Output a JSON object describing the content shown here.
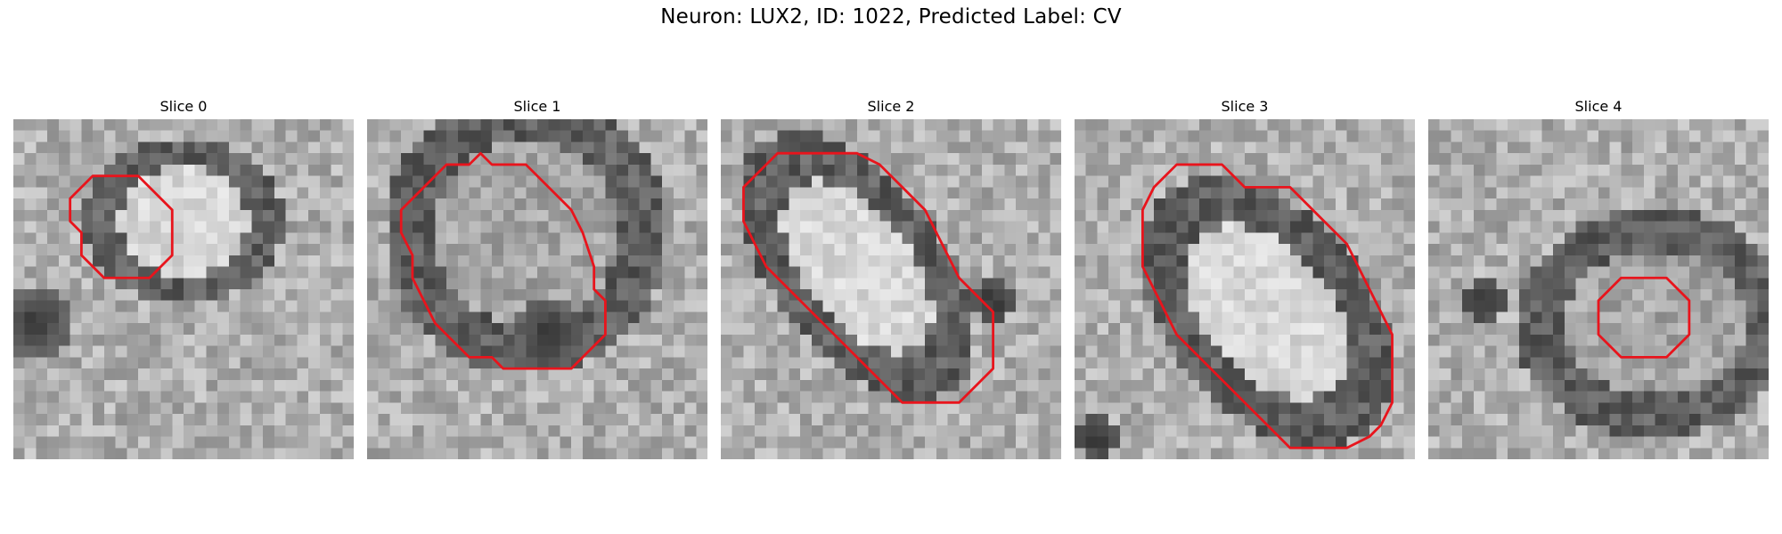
{
  "figure": {
    "title": "Neuron: LUX2, ID: 1022, Predicted Label: CV"
  },
  "colors": {
    "contour": "#e8141c",
    "background": "#ffffff"
  },
  "panels": [
    {
      "title": "Slice 0",
      "seed": 11,
      "ellipse": {
        "cx": 15,
        "cy": 9,
        "rx": 7,
        "ry": 6,
        "angle": 0
      },
      "bright_inside": true,
      "shadow": {
        "cx": 2,
        "cy": 18,
        "r": 3
      },
      "contour": [
        [
          9,
          5
        ],
        [
          11,
          5
        ],
        [
          12,
          6
        ],
        [
          13,
          7
        ],
        [
          14,
          8
        ],
        [
          14,
          12
        ],
        [
          13,
          13
        ],
        [
          12,
          14
        ],
        [
          8,
          14
        ],
        [
          7,
          13
        ],
        [
          6,
          12
        ],
        [
          6,
          10
        ],
        [
          5,
          9
        ],
        [
          5,
          7
        ],
        [
          7,
          5
        ]
      ]
    },
    {
      "title": "Slice 1",
      "seed": 23,
      "ellipse": {
        "cx": 14,
        "cy": 10,
        "rx": 10,
        "ry": 10,
        "angle": 0
      },
      "bright_inside": false,
      "shadow": {
        "cx": 16,
        "cy": 19,
        "r": 3
      },
      "contour": [
        [
          7,
          4
        ],
        [
          9,
          4
        ],
        [
          10,
          3
        ],
        [
          11,
          4
        ],
        [
          14,
          4
        ],
        [
          16,
          6
        ],
        [
          18,
          8
        ],
        [
          19,
          10
        ],
        [
          20,
          13
        ],
        [
          20,
          15
        ],
        [
          21,
          16
        ],
        [
          21,
          19
        ],
        [
          20,
          20
        ],
        [
          19,
          21
        ],
        [
          18,
          22
        ],
        [
          12,
          22
        ],
        [
          11,
          21
        ],
        [
          9,
          21
        ],
        [
          8,
          20
        ],
        [
          7,
          19
        ],
        [
          6,
          18
        ],
        [
          5,
          16
        ],
        [
          4,
          14
        ],
        [
          4,
          12
        ],
        [
          3,
          10
        ],
        [
          3,
          8
        ],
        [
          4,
          7
        ],
        [
          5,
          6
        ],
        [
          6,
          5
        ]
      ]
    },
    {
      "title": "Slice 2",
      "seed": 37,
      "ellipse": {
        "cx": 12,
        "cy": 13,
        "rx": 11,
        "ry": 6,
        "angle": 52
      },
      "bright_inside": true,
      "shadow": {
        "cx": 24,
        "cy": 16,
        "r": 2
      },
      "contour": [
        [
          5,
          3
        ],
        [
          12,
          3
        ],
        [
          14,
          4
        ],
        [
          16,
          6
        ],
        [
          17,
          7
        ],
        [
          18,
          8
        ],
        [
          19,
          10
        ],
        [
          20,
          12
        ],
        [
          21,
          14
        ],
        [
          22,
          15
        ],
        [
          23,
          16
        ],
        [
          24,
          17
        ],
        [
          24,
          22
        ],
        [
          23,
          23
        ],
        [
          22,
          24
        ],
        [
          21,
          25
        ],
        [
          16,
          25
        ],
        [
          14,
          23
        ],
        [
          12,
          21
        ],
        [
          10,
          19
        ],
        [
          8,
          17
        ],
        [
          6,
          15
        ],
        [
          4,
          13
        ],
        [
          3,
          11
        ],
        [
          2,
          9
        ],
        [
          2,
          6
        ],
        [
          3,
          5
        ],
        [
          4,
          4
        ]
      ]
    },
    {
      "title": "Slice 3",
      "seed": 53,
      "ellipse": {
        "cx": 17,
        "cy": 17,
        "rx": 11,
        "ry": 7,
        "angle": 50
      },
      "bright_inside": true,
      "shadow": {
        "cx": 2,
        "cy": 28,
        "r": 2
      },
      "contour": [
        [
          8,
          5
        ],
        [
          9,
          4
        ],
        [
          13,
          4
        ],
        [
          14,
          5
        ],
        [
          15,
          6
        ],
        [
          19,
          6
        ],
        [
          20,
          7
        ],
        [
          22,
          9
        ],
        [
          24,
          11
        ],
        [
          25,
          13
        ],
        [
          26,
          15
        ],
        [
          27,
          17
        ],
        [
          28,
          19
        ],
        [
          28,
          25
        ],
        [
          27,
          27
        ],
        [
          26,
          28
        ],
        [
          24,
          29
        ],
        [
          19,
          29
        ],
        [
          17,
          27
        ],
        [
          15,
          25
        ],
        [
          13,
          23
        ],
        [
          11,
          21
        ],
        [
          9,
          19
        ],
        [
          8,
          17
        ],
        [
          7,
          15
        ],
        [
          6,
          13
        ],
        [
          6,
          8
        ],
        [
          7,
          6
        ]
      ]
    },
    {
      "title": "Slice 4",
      "seed": 71,
      "ellipse": {
        "cx": 20,
        "cy": 18,
        "rx": 10,
        "ry": 8,
        "angle": 0
      },
      "bright_inside": false,
      "shadow": {
        "cx": 5,
        "cy": 16,
        "r": 2
      },
      "contour": [
        [
          17,
          14
        ],
        [
          21,
          14
        ],
        [
          22,
          15
        ],
        [
          23,
          16
        ],
        [
          23,
          19
        ],
        [
          22,
          20
        ],
        [
          21,
          21
        ],
        [
          17,
          21
        ],
        [
          16,
          20
        ],
        [
          15,
          19
        ],
        [
          15,
          16
        ],
        [
          16,
          15
        ]
      ]
    }
  ]
}
